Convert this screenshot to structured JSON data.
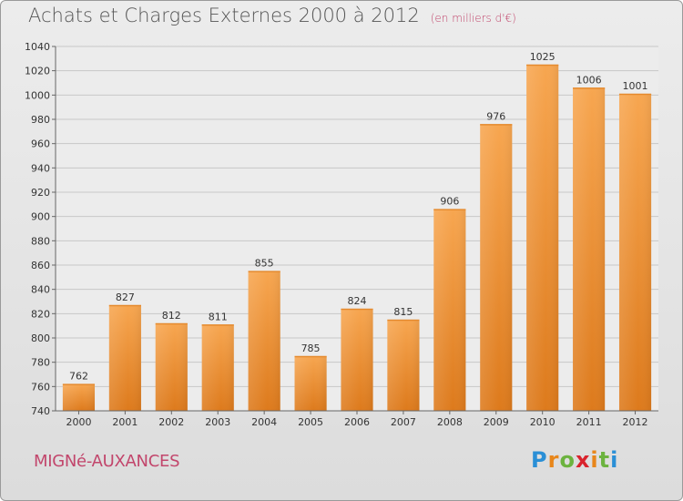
{
  "header": {
    "title": "Achats et Charges Externes 2000 à 2012",
    "unit": "(en milliers d'€)"
  },
  "footer": {
    "city": "MIGNé-AUXANCES",
    "logo_letters": [
      "P",
      "r",
      "o",
      "x",
      "i",
      "t",
      "i"
    ],
    "logo_colors": [
      "#2a8fd6",
      "#e8861a",
      "#6cb33f",
      "#d9232d",
      "#e8861a",
      "#6cb33f",
      "#2a8fd6"
    ]
  },
  "chart_data": {
    "type": "bar",
    "categories": [
      "2000",
      "2001",
      "2002",
      "2003",
      "2004",
      "2005",
      "2006",
      "2007",
      "2008",
      "2009",
      "2010",
      "2011",
      "2012"
    ],
    "values": [
      762,
      827,
      812,
      811,
      855,
      785,
      824,
      815,
      906,
      976,
      1025,
      1006,
      1001
    ],
    "title": "Achats et Charges Externes 2000 à 2012",
    "ylim": [
      740,
      1040
    ],
    "yticks": [
      740,
      760,
      780,
      800,
      820,
      840,
      860,
      880,
      900,
      920,
      940,
      960,
      980,
      1000,
      1020,
      1040
    ],
    "grid": true,
    "bar_color_top": "#f7a650",
    "bar_color_bottom": "#dd7a1c"
  }
}
